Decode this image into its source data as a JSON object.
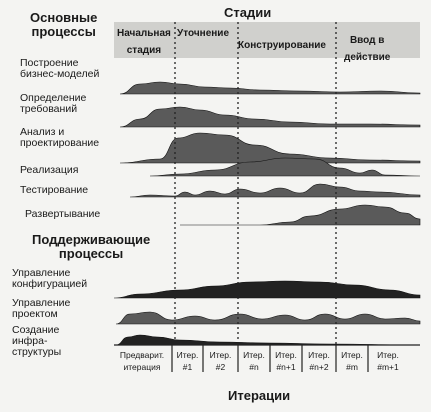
{
  "titles": {
    "stages": "Стадии",
    "main_processes": [
      "Основные",
      "процессы"
    ],
    "supporting_processes": [
      "Поддерживающие",
      "процессы"
    ],
    "iterations": "Итерации"
  },
  "stages": [
    {
      "label": [
        "Начальная",
        "стадия"
      ]
    },
    {
      "label": [
        "Уточнение"
      ]
    },
    {
      "label": [
        "Конструирование"
      ]
    },
    {
      "label": [
        "Ввод в",
        "действие"
      ]
    }
  ],
  "processes": [
    {
      "label": [
        "Построение",
        "бизнес-моделей"
      ]
    },
    {
      "label": [
        "Определение",
        "требований"
      ]
    },
    {
      "label": [
        "Анализ и",
        "проектирование"
      ]
    },
    {
      "label": [
        "Реализация"
      ]
    },
    {
      "label": [
        "Тестирование"
      ]
    },
    {
      "label": [
        "Развертывание"
      ]
    }
  ],
  "supporting": [
    {
      "label": [
        "Управление",
        "конфигурацией"
      ]
    },
    {
      "label": [
        "Управление",
        "проектом"
      ]
    },
    {
      "label": [
        "Создание",
        "инфра-",
        "структуры"
      ]
    }
  ],
  "iterations": [
    [
      "Предварит.",
      "итерация"
    ],
    [
      "Итер.",
      "#1"
    ],
    [
      "Итер.",
      "#2"
    ],
    [
      "Итер.",
      "#n"
    ],
    [
      "Итер.",
      "#n+1"
    ],
    [
      "Итер.",
      "#n+2"
    ],
    [
      "Итер.",
      "#m"
    ],
    [
      "Итер.",
      "#m+1"
    ]
  ],
  "colors": {
    "background": "#f4f4f2",
    "text": "#1a1a1a",
    "fill": "#5a5a5a",
    "fill_dark": "#222222",
    "header": "#c9c9c7"
  }
}
